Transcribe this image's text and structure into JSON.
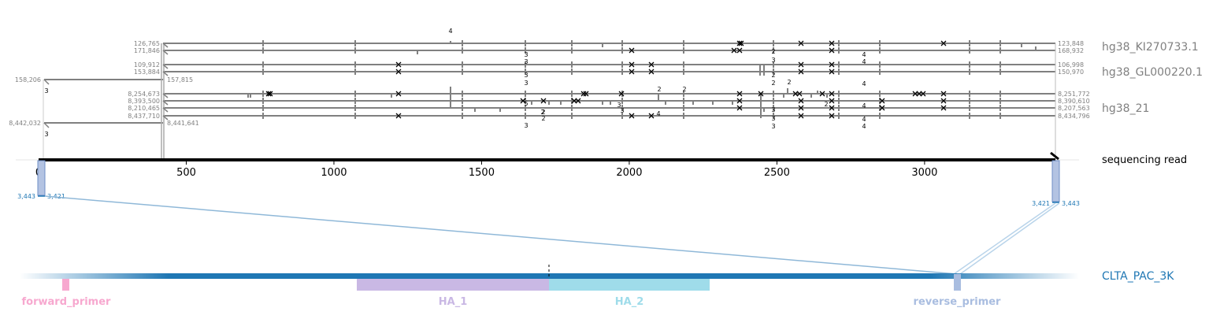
{
  "references": [
    {
      "name": "hg38_KI270733.1",
      "alignments": [
        {
          "left": "126,765",
          "right": "123,848"
        },
        {
          "left": "171,846",
          "right": "168,932"
        }
      ]
    },
    {
      "name": "hg38_GL000220.1",
      "alignments": [
        {
          "left": "109,912",
          "right": "106,998"
        },
        {
          "left": "153,884",
          "right": "150,970"
        }
      ]
    },
    {
      "name": "hg38_21",
      "alignments": [
        {
          "left": "8,254,673",
          "right": "8,251,772"
        },
        {
          "left": "8,393,500",
          "right": "8,390,610"
        },
        {
          "left": "8,210,465",
          "right": "8,207,563"
        },
        {
          "left": "8,437,710",
          "right": "8,434,796"
        }
      ]
    }
  ],
  "short_alignments": [
    {
      "left": "158,206",
      "right": "157,815",
      "count": "3"
    },
    {
      "left": "8,442,032",
      "right": "8,441,641",
      "count": "3"
    }
  ],
  "count_labels": [
    "4",
    "3",
    "3",
    "3",
    "3",
    "4",
    "4",
    "4",
    "2",
    "2",
    "2",
    "2",
    "2",
    "3",
    "2",
    "3",
    "2",
    "2",
    "4",
    "3",
    "3",
    "3",
    "4",
    "4",
    "4",
    "5",
    "2",
    "3",
    "3",
    "2"
  ],
  "read": {
    "label": "sequencing read",
    "axis": {
      "min": 0,
      "max": 3443,
      "ticks": [
        "0",
        "500",
        "1000",
        "1500",
        "2000",
        "2500",
        "3000"
      ]
    },
    "left_end": {
      "outer": "3,443",
      "inner": "3,421"
    },
    "right_end": {
      "inner": "3,421",
      "outer": "3,443"
    }
  },
  "amplicon": {
    "name": "CLTA_PAC_3K",
    "features": [
      {
        "name": "forward_primer",
        "color": "#f7a8cf"
      },
      {
        "name": "HA_1",
        "color": "#c9b8e4"
      },
      {
        "name": "HA_2",
        "color": "#9fdcea"
      },
      {
        "name": "reverse_primer",
        "color": "#a9bde0"
      }
    ]
  },
  "colors": {
    "alignment": "#808080",
    "read": "#000000",
    "amplicon": "#1f77b4"
  }
}
